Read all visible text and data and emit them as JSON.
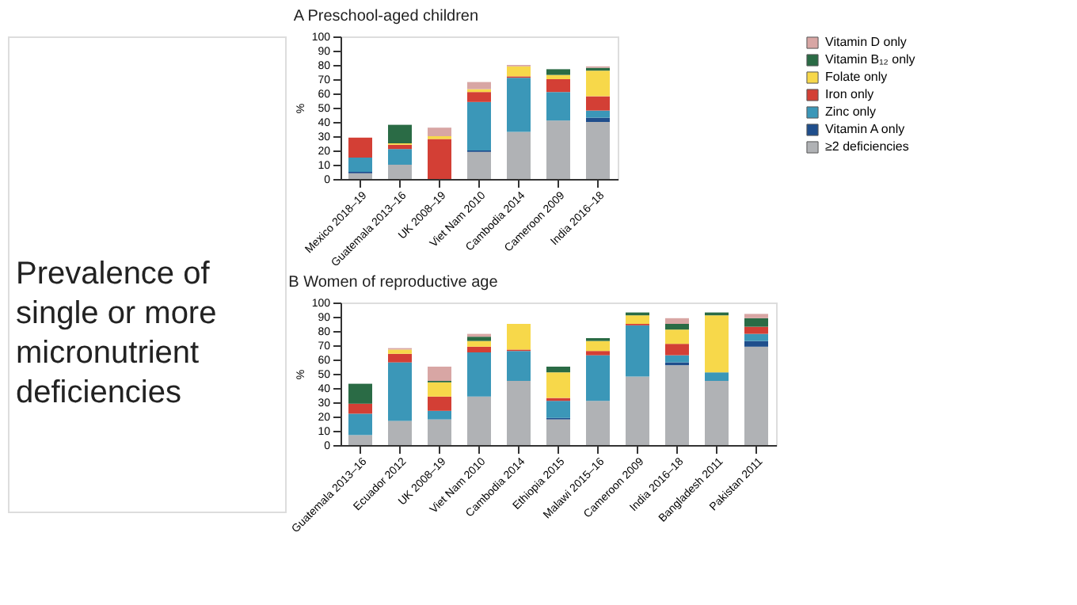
{
  "chart_data": [
    {
      "type": "other",
      "title": "Prevalence of single or more micronutrient deficiencies"
    },
    {
      "type": "bar",
      "stacked": true,
      "title": "A   Preschool-aged children",
      "ylabel": "%",
      "ylim": [
        0,
        100
      ],
      "yticks": [
        0,
        10,
        20,
        30,
        40,
        50,
        60,
        70,
        80,
        90,
        100
      ],
      "grid": false,
      "legend": "top right",
      "categories": [
        "Mexico 2018–19",
        "Guatemala 2013–16",
        "UK 2008–19",
        "Viet Nam 2010",
        "Cambodia 2014",
        "Cameroon 2009",
        "India 2016–18"
      ],
      "series": [
        {
          "name": "≥2 deficiencies",
          "color": "#b0b2b5",
          "values": [
            4,
            10,
            null,
            19,
            33,
            41,
            40
          ]
        },
        {
          "name": "Vitamin A only",
          "color": "#1f4e8c",
          "values": [
            1,
            0,
            0,
            1,
            0,
            0,
            3
          ]
        },
        {
          "name": "Zinc only",
          "color": "#3b97b8",
          "values": [
            10,
            11,
            0,
            34,
            38,
            20,
            5
          ]
        },
        {
          "name": "Iron only",
          "color": "#d33f35",
          "values": [
            14,
            3,
            28,
            7,
            1,
            9,
            10
          ]
        },
        {
          "name": "Folate only",
          "color": "#f7d84a",
          "values": [
            0,
            1,
            2,
            2,
            7,
            3,
            18
          ]
        },
        {
          "name": "Vitamin B₁₂ only",
          "color": "#2a6b45",
          "values": [
            0,
            13,
            0,
            0,
            0,
            4,
            2
          ]
        },
        {
          "name": "Vitamin D only",
          "color": "#d8a6a4",
          "values": [
            0,
            0,
            6,
            5,
            1,
            0,
            1
          ]
        }
      ]
    },
    {
      "type": "bar",
      "stacked": true,
      "title": "B   Women of reproductive age",
      "ylabel": "%",
      "ylim": [
        0,
        100
      ],
      "yticks": [
        0,
        10,
        20,
        30,
        40,
        50,
        60,
        70,
        80,
        90,
        100
      ],
      "grid": false,
      "categories": [
        "Guatemala 2013–16",
        "Ecuador 2012",
        "UK 2008–19",
        "Viet Nam 2010",
        "Cambodia 2014",
        "Ethiopia 2015",
        "Malawi 2015–16",
        "Cameroon 2009",
        "India 2016–18",
        "Bangladesh 2011",
        "Pakistan 2011"
      ],
      "series": [
        {
          "name": "≥2 deficiencies",
          "color": "#b0b2b5",
          "values": [
            7,
            17,
            18,
            34,
            45,
            18,
            31,
            48,
            56,
            45,
            69
          ]
        },
        {
          "name": "Vitamin A only",
          "color": "#1f4e8c",
          "values": [
            0,
            0,
            0,
            0,
            0,
            1,
            0,
            0,
            2,
            0,
            4
          ]
        },
        {
          "name": "Zinc only",
          "color": "#3b97b8",
          "values": [
            15,
            41,
            6,
            31,
            21,
            12,
            32,
            36,
            5,
            6,
            5
          ]
        },
        {
          "name": "Iron only",
          "color": "#d33f35",
          "values": [
            7,
            6,
            10,
            4,
            1,
            2,
            3,
            1,
            8,
            0,
            5
          ]
        },
        {
          "name": "Folate only",
          "color": "#f7d84a",
          "values": [
            0,
            3,
            10,
            4,
            18,
            18,
            7,
            6,
            10,
            40,
            0
          ]
        },
        {
          "name": "Vitamin B₁₂ only",
          "color": "#2a6b45",
          "values": [
            14,
            0,
            1,
            3,
            0,
            4,
            2,
            2,
            4,
            2,
            6
          ]
        },
        {
          "name": "Vitamin D only",
          "color": "#d8a6a4",
          "values": [
            0,
            1,
            10,
            2,
            0,
            0,
            0,
            0,
            4,
            0,
            3
          ]
        }
      ]
    }
  ]
}
